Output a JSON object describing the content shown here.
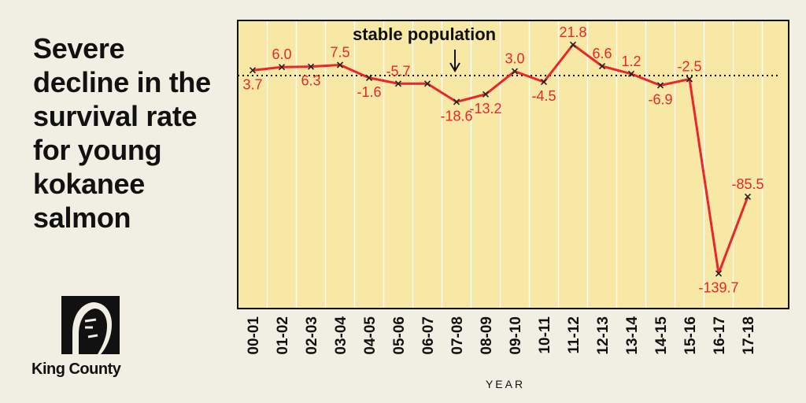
{
  "headline": "Severe decline in the survival rate for young kokanee salmon",
  "logo": {
    "name": "King County",
    "icon": "king-county-portrait-logo"
  },
  "chart_data": {
    "type": "line",
    "title": "",
    "xlabel": "YEAR",
    "ylabel": "",
    "categories": [
      "00-01",
      "01-02",
      "02-03",
      "03-04",
      "04-05",
      "05-06",
      "06-07",
      "07-08",
      "08-09",
      "09-10",
      "10-11",
      "11-12",
      "12-13",
      "13-14",
      "14-15",
      "15-16",
      "16-17",
      "17-18"
    ],
    "values": [
      3.7,
      6.0,
      6.3,
      7.5,
      -1.6,
      -5.7,
      -5.7,
      -18.6,
      -13.2,
      3.0,
      -4.5,
      21.8,
      6.6,
      1.2,
      -6.9,
      -2.5,
      -139.7,
      -85.5
    ],
    "labels": [
      "3.7",
      "6.0",
      "6.3",
      "7.5",
      "-1.6",
      "-5.7",
      "",
      "-18.6",
      "-13.2",
      "3.0",
      "-4.5",
      "21.8",
      "6.6",
      "1.2",
      "-6.9",
      "-2.5",
      "-139.7",
      "-85.5"
    ],
    "ylim": [
      -150,
      30
    ],
    "grid": true,
    "reference_line": {
      "value": 0,
      "label": "stable population",
      "style": "dotted"
    },
    "colors": {
      "line": "#e8262b",
      "background": "#f8e8a6",
      "grid": "#ffffff",
      "markers": "#222222"
    }
  }
}
